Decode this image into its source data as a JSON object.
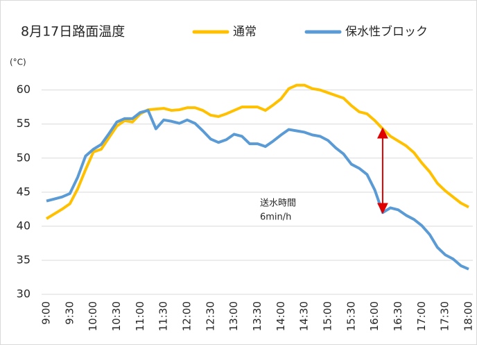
{
  "chart_data": {
    "type": "line",
    "title": "8月17日路面温度",
    "y_unit_label": "(°C)",
    "categories": [
      "9:00",
      null,
      null,
      "9:30",
      null,
      null,
      "10:00",
      null,
      null,
      "10:30",
      null,
      null,
      "11:00",
      null,
      null,
      "11:30",
      null,
      null,
      "12:00",
      null,
      null,
      "12:30",
      null,
      null,
      "13:00",
      null,
      null,
      "13:30",
      null,
      null,
      "14:00",
      null,
      null,
      "14:30",
      null,
      null,
      "15:00",
      null,
      null,
      "15:30",
      null,
      null,
      "16:00",
      null,
      null,
      "16:30",
      null,
      null,
      "17:00",
      null,
      null,
      "17:30",
      null,
      null,
      "18:00"
    ],
    "series": [
      {
        "name": "通常",
        "color": "#ffc000",
        "values": [
          41.1,
          41.8,
          42.5,
          43.3,
          45.5,
          48.3,
          50.9,
          51.3,
          53.0,
          54.7,
          55.5,
          55.3,
          56.5,
          57.1,
          57.2,
          57.3,
          57.0,
          57.1,
          57.4,
          57.4,
          57.0,
          56.3,
          56.1,
          56.5,
          57.0,
          57.5,
          57.5,
          57.5,
          57.0,
          57.8,
          58.7,
          60.2,
          60.7,
          60.7,
          60.2,
          60.0,
          59.6,
          59.2,
          58.8,
          57.7,
          56.8,
          56.5,
          55.5,
          54.3,
          53.2,
          52.5,
          51.8,
          50.8,
          49.3,
          48.0,
          46.3,
          45.2,
          44.3,
          43.4,
          42.8
        ]
      },
      {
        "name": "保水性ブロック",
        "color": "#5b9bd5",
        "values": [
          43.7,
          44.0,
          44.3,
          44.8,
          47.2,
          50.3,
          51.3,
          52.0,
          53.6,
          55.3,
          55.8,
          55.8,
          56.7,
          57.0,
          54.3,
          55.6,
          55.4,
          55.1,
          55.6,
          55.1,
          54.0,
          52.8,
          52.3,
          52.7,
          53.5,
          53.2,
          52.1,
          52.1,
          51.7,
          52.5,
          53.4,
          54.2,
          54.0,
          53.8,
          53.4,
          53.2,
          52.6,
          51.5,
          50.6,
          49.1,
          48.5,
          47.6,
          45.3,
          42.0,
          42.7,
          42.4,
          41.6,
          41.0,
          40.1,
          38.8,
          36.9,
          35.8,
          35.2,
          34.2,
          33.7
        ]
      }
    ],
    "annotation": [
      "送水時間",
      "6min/h"
    ],
    "ylim": [
      30,
      62
    ],
    "yticks": [
      30,
      35,
      40,
      45,
      50,
      55,
      60
    ],
    "grid": true,
    "legend": "top"
  }
}
